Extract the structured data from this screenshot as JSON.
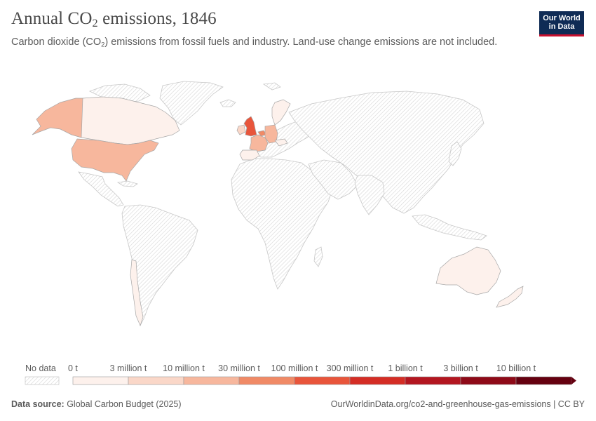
{
  "header": {
    "title_main": "Annual CO",
    "title_sub": "2",
    "title_rest": " emissions, 1846",
    "subtitle_main": "Carbon dioxide (CO",
    "subtitle_sub": "2",
    "subtitle_rest": ") emissions from fossil fuels and industry. Land-use change emissions are not included."
  },
  "logo": {
    "line1": "Our World",
    "line2": "in Data"
  },
  "legend": {
    "no_data_label": "No data",
    "bins": [
      {
        "label": "0 t",
        "color": "#fdf1ec"
      },
      {
        "label": "3 million t",
        "color": "#fad7c8"
      },
      {
        "label": "10 million t",
        "color": "#f7b79d"
      },
      {
        "label": "30 million t",
        "color": "#f08a66"
      },
      {
        "label": "100 million t",
        "color": "#e8553b"
      },
      {
        "label": "300 million t",
        "color": "#d42d25"
      },
      {
        "label": "1 billion t",
        "color": "#b31620"
      },
      {
        "label": "3 billion t",
        "color": "#8e0a18"
      },
      {
        "label": "10 billion t",
        "color": "#650010"
      }
    ]
  },
  "countries": {
    "usa": {
      "name": "United States",
      "color": "#f7b79d"
    },
    "alaska": {
      "name": "United States (Alaska)",
      "color": "#f7b79d"
    },
    "canada": {
      "name": "Canada",
      "color": "#fdf1ec"
    },
    "uk": {
      "name": "United Kingdom",
      "color": "#e8553b"
    },
    "france": {
      "name": "France",
      "color": "#f7b79d"
    },
    "germany": {
      "name": "Germany",
      "color": "#f7b79d"
    },
    "belgium": {
      "name": "Belgium",
      "color": "#f08a66"
    },
    "ireland": {
      "name": "Ireland",
      "color": "#fad7c8"
    },
    "spain": {
      "name": "Spain",
      "color": "#fdf1ec"
    },
    "sweden": {
      "name": "Sweden",
      "color": "#fdf1ec"
    },
    "austria": {
      "name": "Austria",
      "color": "#fdf1ec"
    },
    "australia": {
      "name": "Australia",
      "color": "#fdf1ec"
    },
    "new_zealand": {
      "name": "New Zealand",
      "color": "#fdf1ec"
    },
    "chile": {
      "name": "Chile",
      "color": "#fdf1ec"
    }
  },
  "footer": {
    "source_label": "Data source:",
    "source_value": " Global Carbon Budget (2025)",
    "url": "OurWorldinData.org/co2-and-greenhouse-gas-emissions",
    "license": " | CC BY"
  }
}
